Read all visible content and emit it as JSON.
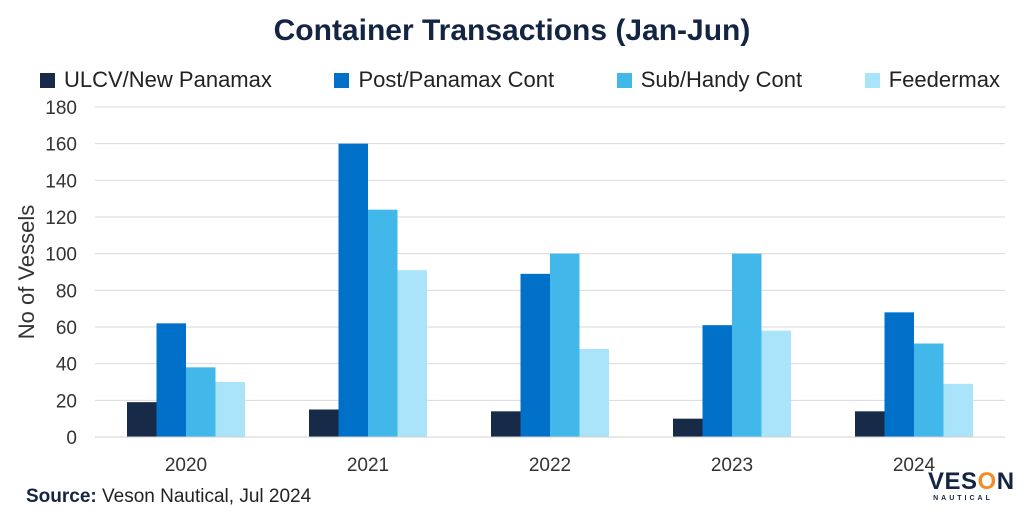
{
  "chart_data": {
    "type": "bar",
    "title": "Container Transactions (Jan-Jun)",
    "xlabel": "",
    "ylabel": "No of Vessels",
    "ylim": [
      0,
      180
    ],
    "yticks": [
      0,
      20,
      40,
      60,
      80,
      100,
      120,
      140,
      160,
      180
    ],
    "grid": true,
    "legend_position": "top",
    "categories": [
      "2020",
      "2021",
      "2022",
      "2023",
      "2024"
    ],
    "series": [
      {
        "name": "ULCV/New Panamax",
        "color": "#172a48",
        "values": [
          19,
          15,
          14,
          10,
          14
        ]
      },
      {
        "name": "Post/Panamax Cont",
        "color": "#0070c8",
        "values": [
          62,
          160,
          89,
          61,
          68
        ]
      },
      {
        "name": "Sub/Handy Cont",
        "color": "#42b8ea",
        "values": [
          38,
          124,
          100,
          100,
          51
        ]
      },
      {
        "name": "Feedermax",
        "color": "#aae4fa",
        "values": [
          30,
          91,
          48,
          58,
          29
        ]
      }
    ]
  },
  "source": {
    "label": "Source:",
    "text": "Veson Nautical, Jul 2024"
  },
  "logo": {
    "word_start": "VES",
    "word_o": "O",
    "word_end": "N",
    "subtitle": "NAUTICAL"
  }
}
